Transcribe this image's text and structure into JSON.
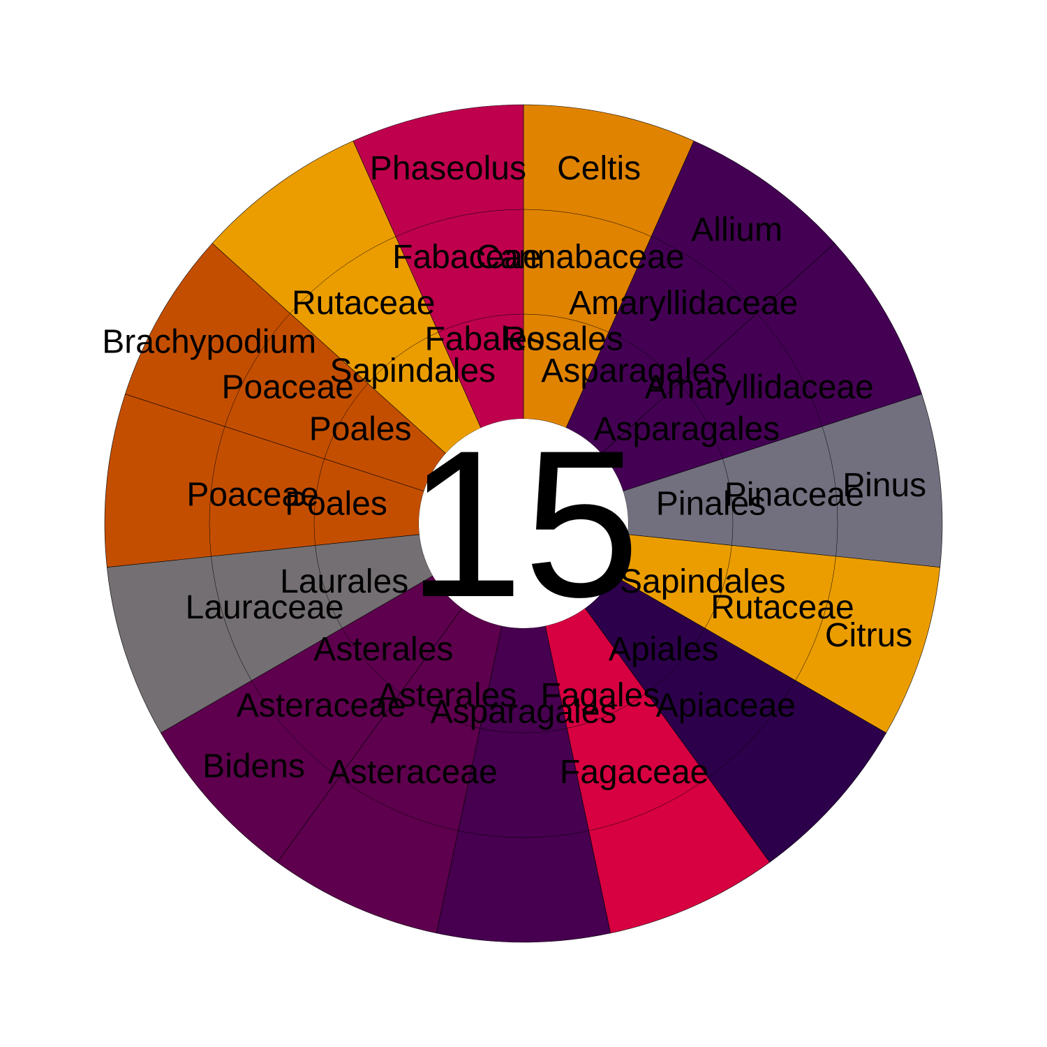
{
  "chart_data": {
    "type": "sunburst",
    "center_label": "15",
    "ring_levels": [
      "order",
      "family",
      "genus"
    ],
    "wedges": [
      {
        "order": "Rosales",
        "family": "Cannabaceae",
        "genus": "Celtis",
        "count": 1,
        "color": "#E08300"
      },
      {
        "order": "Asparagales",
        "family": "Amaryllidaceae",
        "genus": "Allium",
        "count": 1,
        "color": "#440154"
      },
      {
        "order": "Asparagales",
        "family": "Amaryllidaceae",
        "genus": "",
        "count": 1,
        "color": "#440154"
      },
      {
        "order": "Pinales",
        "family": "Pinaceae",
        "genus": "Pinus",
        "count": 1,
        "color": "#72707F"
      },
      {
        "order": "Sapindales",
        "family": "Rutaceae",
        "genus": "Citrus",
        "count": 1,
        "color": "#EB9D00"
      },
      {
        "order": "Apiales",
        "family": "Apiaceae",
        "genus": "",
        "count": 1,
        "color": "#2D004B"
      },
      {
        "order": "Fagales",
        "family": "Fagaceae",
        "genus": "",
        "count": 1,
        "color": "#D70040"
      },
      {
        "order": "Asparagales",
        "family": "",
        "genus": "",
        "count": 1,
        "color": "#46004F"
      },
      {
        "order": "Asterales",
        "family": "Asteraceae",
        "genus": "",
        "count": 1,
        "color": "#5E004E"
      },
      {
        "order": "Asterales",
        "family": "Asteraceae",
        "genus": "Bidens",
        "count": 1,
        "color": "#5E004E"
      },
      {
        "order": "Laurales",
        "family": "Lauraceae",
        "genus": "",
        "count": 1,
        "color": "#736F72"
      },
      {
        "order": "Poales",
        "family": "Poaceae",
        "genus": "",
        "count": 1,
        "color": "#C44E00"
      },
      {
        "order": "Poales",
        "family": "Poaceae",
        "genus": "Brachypodium",
        "count": 1,
        "color": "#C44E00"
      },
      {
        "order": "Sapindales",
        "family": "Rutaceae",
        "genus": "",
        "count": 1,
        "color": "#EB9D00"
      },
      {
        "order": "Fabales",
        "family": "Fabaceae",
        "genus": "Phaseolus",
        "count": 1,
        "color": "#BF004D"
      }
    ]
  }
}
